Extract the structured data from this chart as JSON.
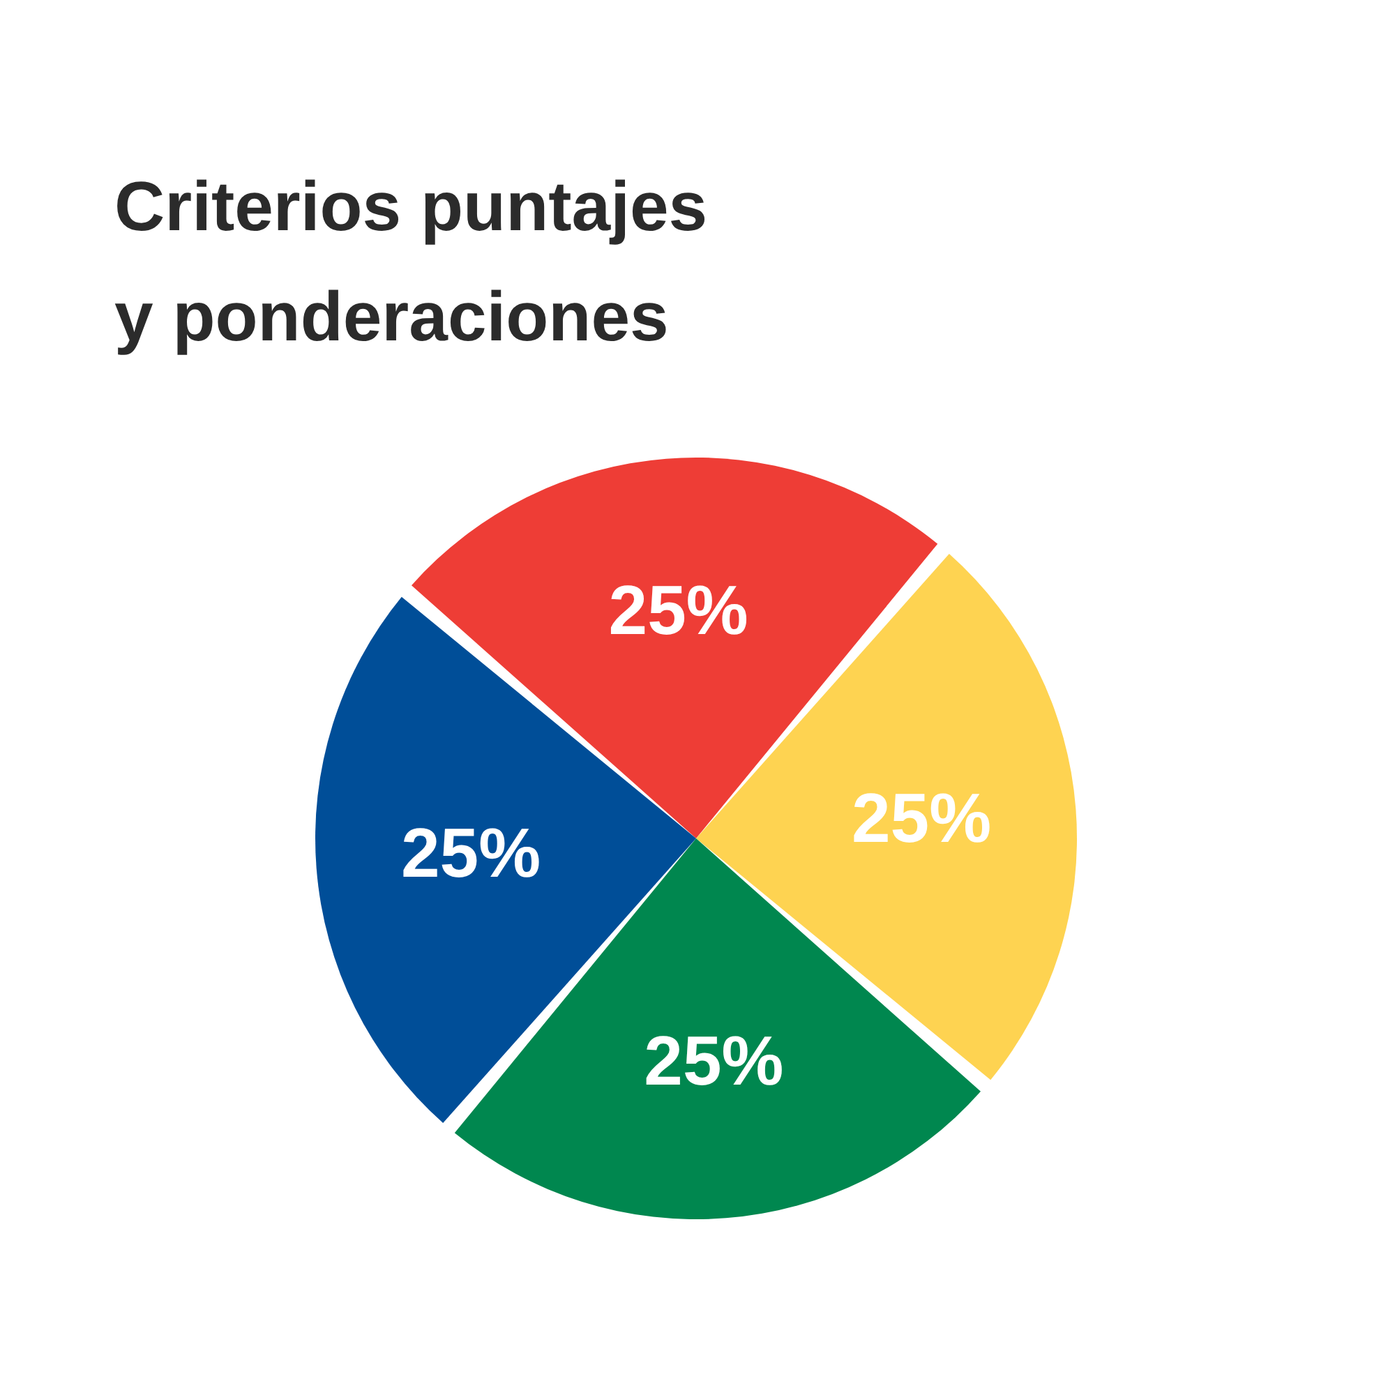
{
  "chart_data": {
    "type": "pie",
    "title": "Criterios puntajes\ny ponderaciones",
    "categories": [
      null,
      null,
      null,
      null
    ],
    "values": [
      25,
      25,
      25,
      25
    ],
    "colors": [
      "#ee3d36",
      "#fed351",
      "#00874f",
      "#004e98"
    ],
    "value_labels": [
      "25%",
      "25%",
      "25%",
      "25%"
    ]
  }
}
